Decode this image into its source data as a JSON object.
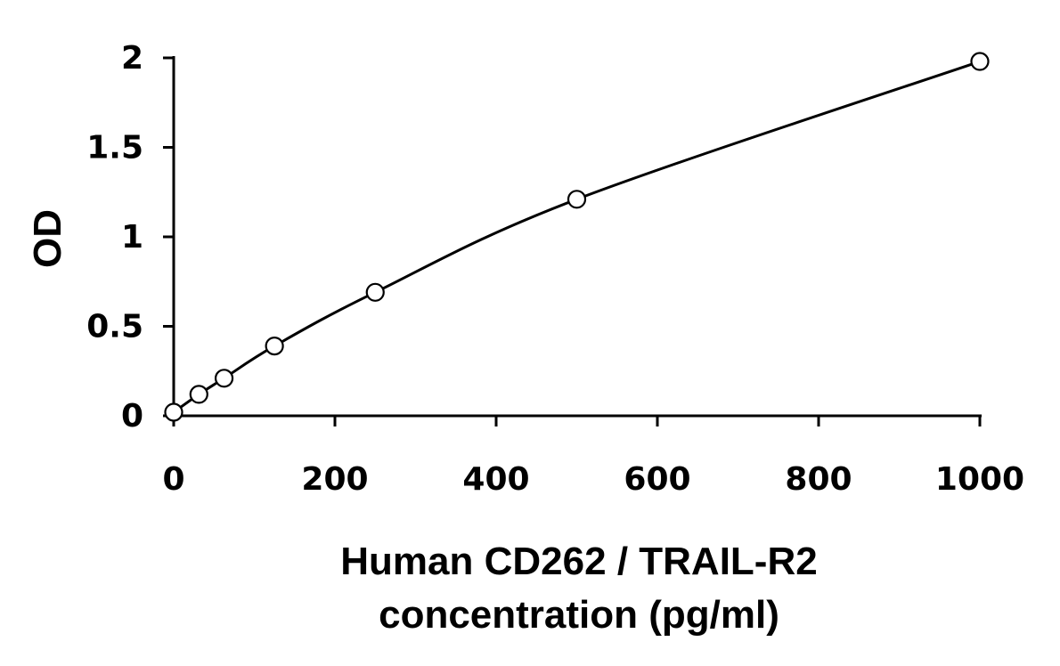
{
  "chart_data": {
    "type": "scatter",
    "title": "",
    "xlabel_lines": [
      "Human CD262 / TRAIL-R2",
      "concentration (pg/ml)"
    ],
    "ylabel": "OD",
    "xlim": [
      0,
      1000
    ],
    "ylim": [
      0,
      2
    ],
    "xticks": [
      0,
      200,
      400,
      600,
      800,
      1000
    ],
    "yticks": [
      0,
      0.5,
      1,
      1.5,
      2
    ],
    "ytick_labels": [
      "0",
      "0.5",
      "1",
      "1.5",
      "2"
    ],
    "grid": false,
    "legend": "none",
    "series": [
      {
        "x": [
          0,
          31.25,
          62.5,
          125,
          250,
          500,
          1000
        ],
        "y": [
          0.02,
          0.12,
          0.21,
          0.39,
          0.69,
          1.21,
          1.98
        ],
        "marker": "open-circle",
        "fit_curve": true,
        "color": "#000000"
      }
    ]
  }
}
